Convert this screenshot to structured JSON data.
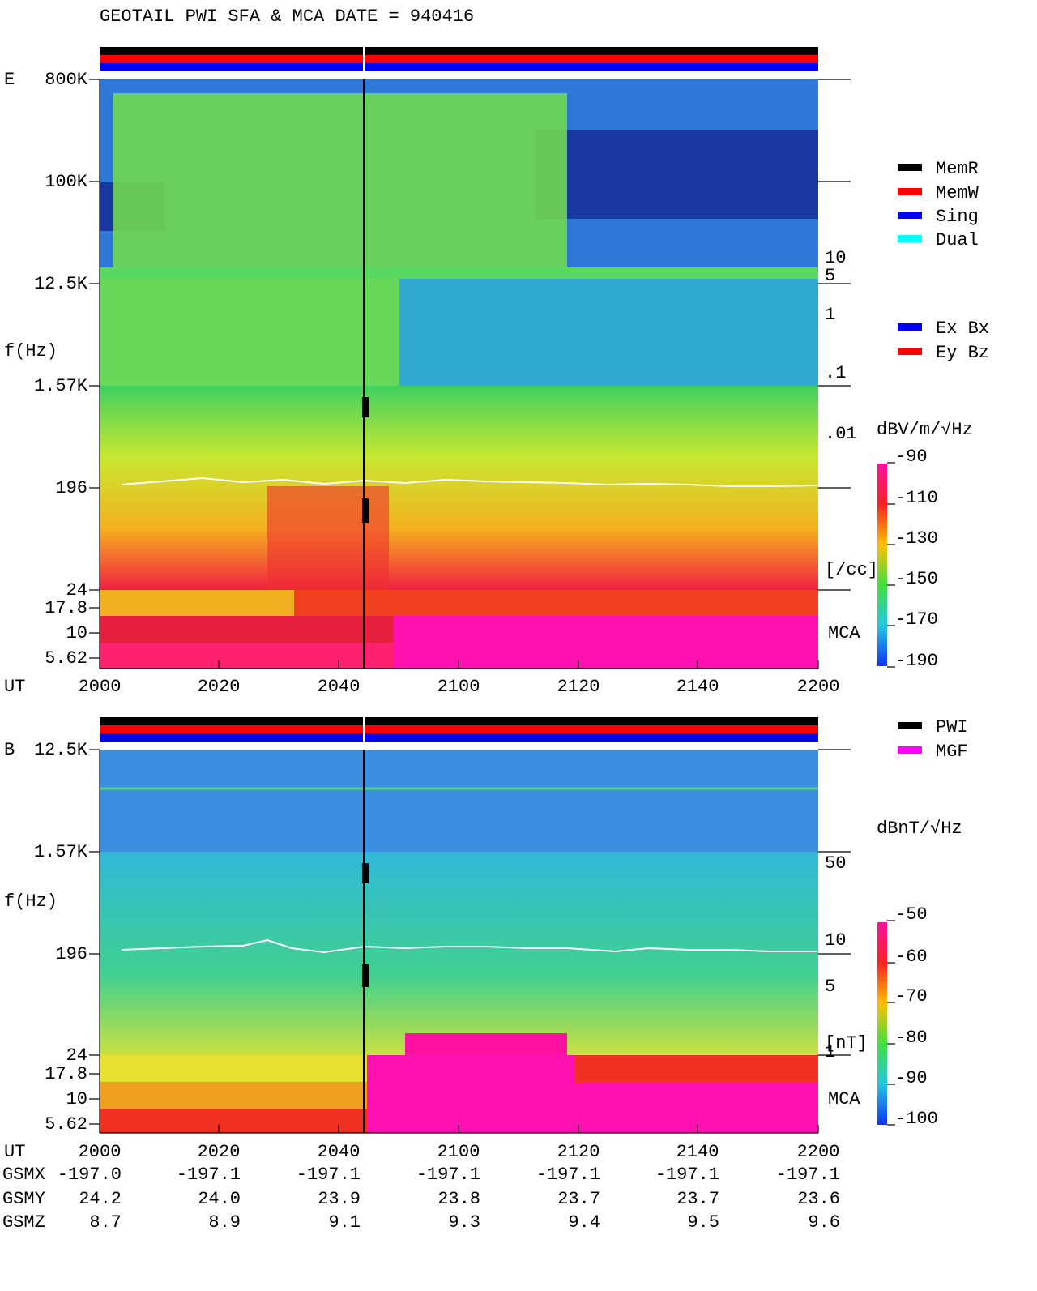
{
  "header": {
    "title": "GEOTAIL   PWI SFA & MCA   DATE = 940416"
  },
  "panels": [
    {
      "label": "E",
      "y_axis_label": "f(Hz)",
      "y_ticks": [
        "800K",
        "100K",
        "12.5K",
        "1.57K",
        "196",
        "24",
        "17.8",
        "10",
        "5.62"
      ],
      "x_axis_label": "UT",
      "x_ticks": [
        "2000",
        "2020",
        "2040",
        "2100",
        "2120",
        "2140",
        "2200"
      ],
      "right_labels": [
        "10",
        "5",
        "1",
        ".1",
        ".01",
        "[/cc]"
      ],
      "mca_label": "MCA",
      "legend": [
        {
          "label": "MemR",
          "color": "#000000"
        },
        {
          "label": "MemW",
          "color": "#ff0000"
        },
        {
          "label": "Sing",
          "color": "#0000ff"
        },
        {
          "label": "Dual",
          "color": "#00ffff"
        }
      ],
      "legend2": [
        {
          "label": "Ex Bx",
          "color": "#0000ff"
        },
        {
          "label": "Ey Bz",
          "color": "#ff0000"
        }
      ],
      "colorbar": {
        "unit": "dBV/m/√Hz",
        "ticks": [
          "-90",
          "-110",
          "-130",
          "-150",
          "-170",
          "-190"
        ]
      }
    },
    {
      "label": "B",
      "y_axis_label": "f(Hz)",
      "y_ticks": [
        "12.5K",
        "1.57K",
        "196",
        "24",
        "17.8",
        "10",
        "5.62"
      ],
      "x_axis_label": "UT",
      "x_ticks": [
        "2000",
        "2020",
        "2040",
        "2100",
        "2120",
        "2140",
        "2200"
      ],
      "right_labels": [
        "50",
        "10",
        "5",
        "1",
        "[nT]"
      ],
      "mca_label": "MCA",
      "legend": [
        {
          "label": "PWI",
          "color": "#000000"
        },
        {
          "label": "MGF",
          "color": "#ff00ff"
        }
      ],
      "colorbar": {
        "unit": "dBnT/√Hz",
        "ticks": [
          "-50",
          "-60",
          "-70",
          "-80",
          "-90",
          "-100"
        ]
      }
    }
  ],
  "ephemeris": {
    "rows": [
      {
        "label": "GSMX",
        "values": [
          "-197.0",
          "-197.1",
          "-197.1",
          "-197.1",
          "-197.1",
          "-197.1",
          "-197.1"
        ]
      },
      {
        "label": "GSMY",
        "values": [
          "24.2",
          "24.0",
          "23.9",
          "23.8",
          "23.7",
          "23.7",
          "23.6"
        ]
      },
      {
        "label": "GSMZ",
        "values": [
          "8.7",
          "8.9",
          "9.1",
          "9.3",
          "9.4",
          "9.5",
          "9.6"
        ]
      }
    ]
  }
}
